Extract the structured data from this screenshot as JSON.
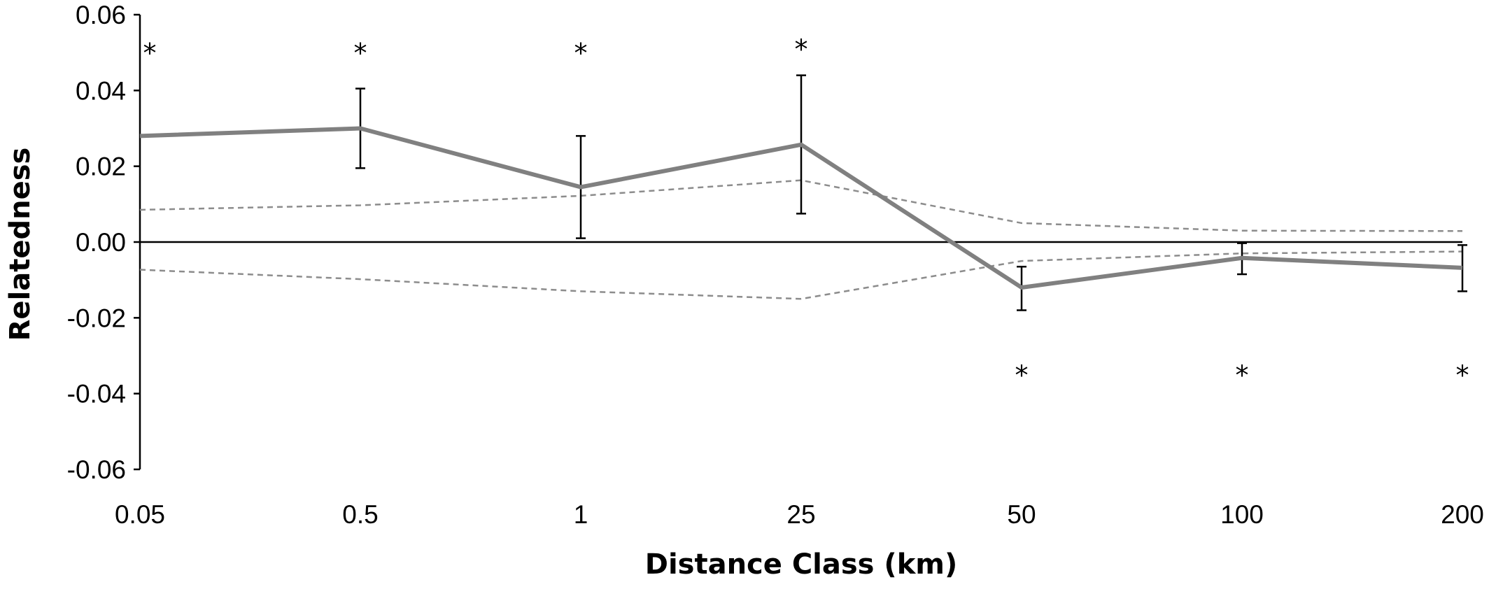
{
  "chart_data": {
    "type": "line",
    "title": "",
    "xlabel": "Distance Class (km)",
    "ylabel": "Relatedness",
    "categories": [
      "0.05",
      "0.5",
      "1",
      "25",
      "50",
      "100",
      "200"
    ],
    "ylim": [
      -0.06,
      0.06
    ],
    "yticks": [
      "0.06",
      "0.04",
      "0.02",
      "0.00",
      "-0.02",
      "-0.04",
      "-0.06"
    ],
    "ytick_values": [
      0.06,
      0.04,
      0.02,
      0.0,
      -0.02,
      -0.04,
      -0.06
    ],
    "grid": false,
    "legend": "none",
    "series": [
      {
        "role": "observed",
        "values": [
          0.028,
          0.03,
          0.0145,
          0.0257,
          -0.012,
          -0.0042,
          -0.0068
        ],
        "error_lower": [
          null,
          0.0195,
          0.001,
          0.0075,
          -0.018,
          -0.0085,
          -0.013
        ],
        "error_upper": [
          null,
          0.0405,
          0.028,
          0.044,
          -0.0065,
          -0.0003,
          -0.0008
        ],
        "color": "#808080",
        "style": "solid"
      },
      {
        "role": "upper-confidence",
        "values": [
          0.0085,
          0.0097,
          0.0122,
          0.0163,
          0.005,
          0.003,
          0.0029
        ],
        "color": "#8c8c8c",
        "style": "dashed"
      },
      {
        "role": "lower-confidence",
        "values": [
          -0.0073,
          -0.0098,
          -0.013,
          -0.015,
          -0.005,
          -0.003,
          -0.0025
        ],
        "color": "#8c8c8c",
        "style": "dashed"
      }
    ],
    "annotations": [
      {
        "text": "*",
        "category": "0.05",
        "y": 0.0515
      },
      {
        "text": "*",
        "category": "0.5",
        "y": 0.0515
      },
      {
        "text": "*",
        "category": "1",
        "y": 0.0515
      },
      {
        "text": "*",
        "category": "25",
        "y": 0.0525
      },
      {
        "text": "*",
        "category": "50",
        "y": -0.0335
      },
      {
        "text": "*",
        "category": "100",
        "y": -0.0335
      },
      {
        "text": "*",
        "category": "200",
        "y": -0.0335
      }
    ]
  }
}
